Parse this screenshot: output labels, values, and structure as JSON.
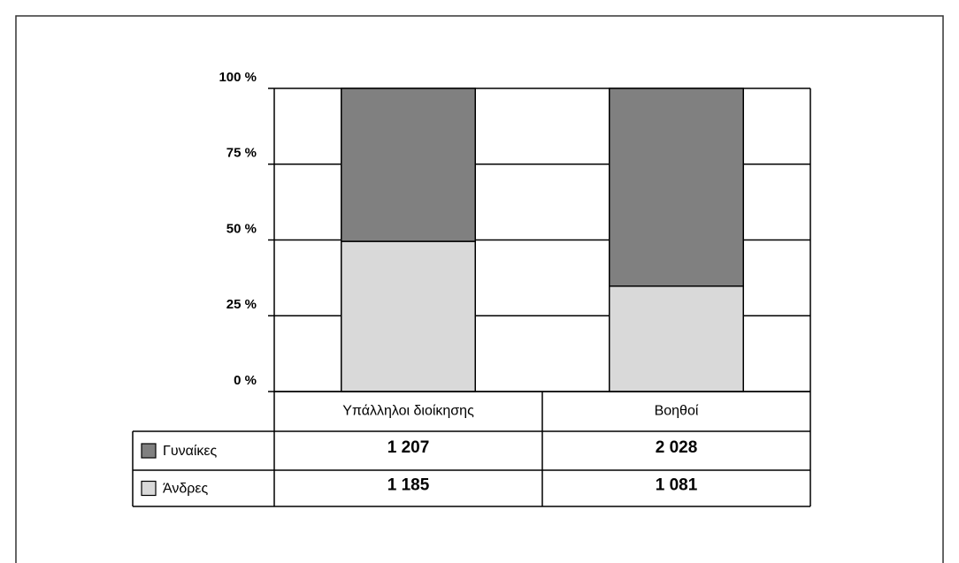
{
  "chart_data": {
    "type": "bar",
    "stacked_percent": true,
    "categories": [
      "Υπάλληλοι διοίκησης",
      "Βοηθοί"
    ],
    "series": [
      {
        "name": "Γυναίκες",
        "color": "#808080",
        "values": [
          1207,
          2028
        ],
        "value_labels": [
          "1 207",
          "2 028"
        ]
      },
      {
        "name": "Άνδρες",
        "color": "#d9d9d9",
        "values": [
          1185,
          1081
        ],
        "value_labels": [
          "1 185",
          "1 081"
        ]
      }
    ],
    "ylim": [
      0,
      100
    ],
    "yticks": [
      {
        "value": 0,
        "label": "0 %"
      },
      {
        "value": 25,
        "label": "25 %"
      },
      {
        "value": 50,
        "label": "50 %"
      },
      {
        "value": 75,
        "label": "75 %"
      },
      {
        "value": 100,
        "label": "100 %"
      }
    ],
    "grid": true
  }
}
